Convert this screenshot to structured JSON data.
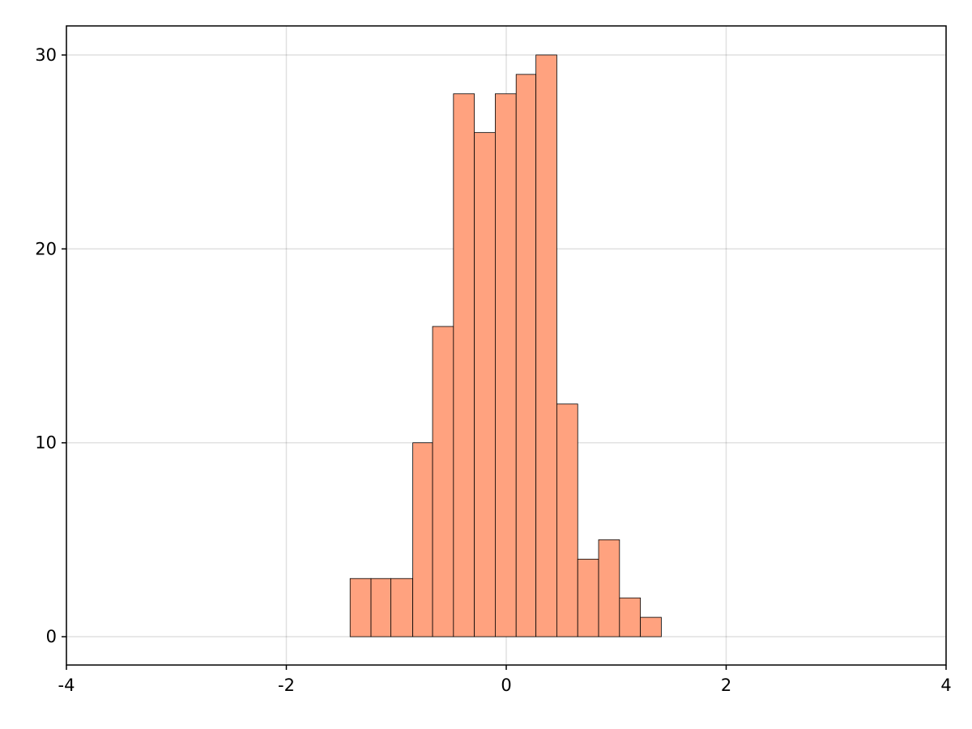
{
  "chart_data": {
    "type": "histogram",
    "bins": [
      -1.42,
      -1.23,
      -1.05,
      -0.85,
      -0.67,
      -0.48,
      -0.29,
      -0.1,
      0.09,
      0.27,
      0.46,
      0.65,
      0.84,
      1.03,
      1.22,
      1.41
    ],
    "values": [
      3,
      3,
      3,
      10,
      16,
      28,
      26,
      28,
      29,
      30,
      12,
      4,
      5,
      2,
      1
    ],
    "color": "#ffa27f",
    "xlim": [
      -4,
      4
    ],
    "xticks": [
      -4,
      -2,
      0,
      2,
      4
    ],
    "ylim": [
      -1.46,
      31.5
    ],
    "yticks": [
      0,
      10,
      20,
      30
    ],
    "grid": true
  }
}
